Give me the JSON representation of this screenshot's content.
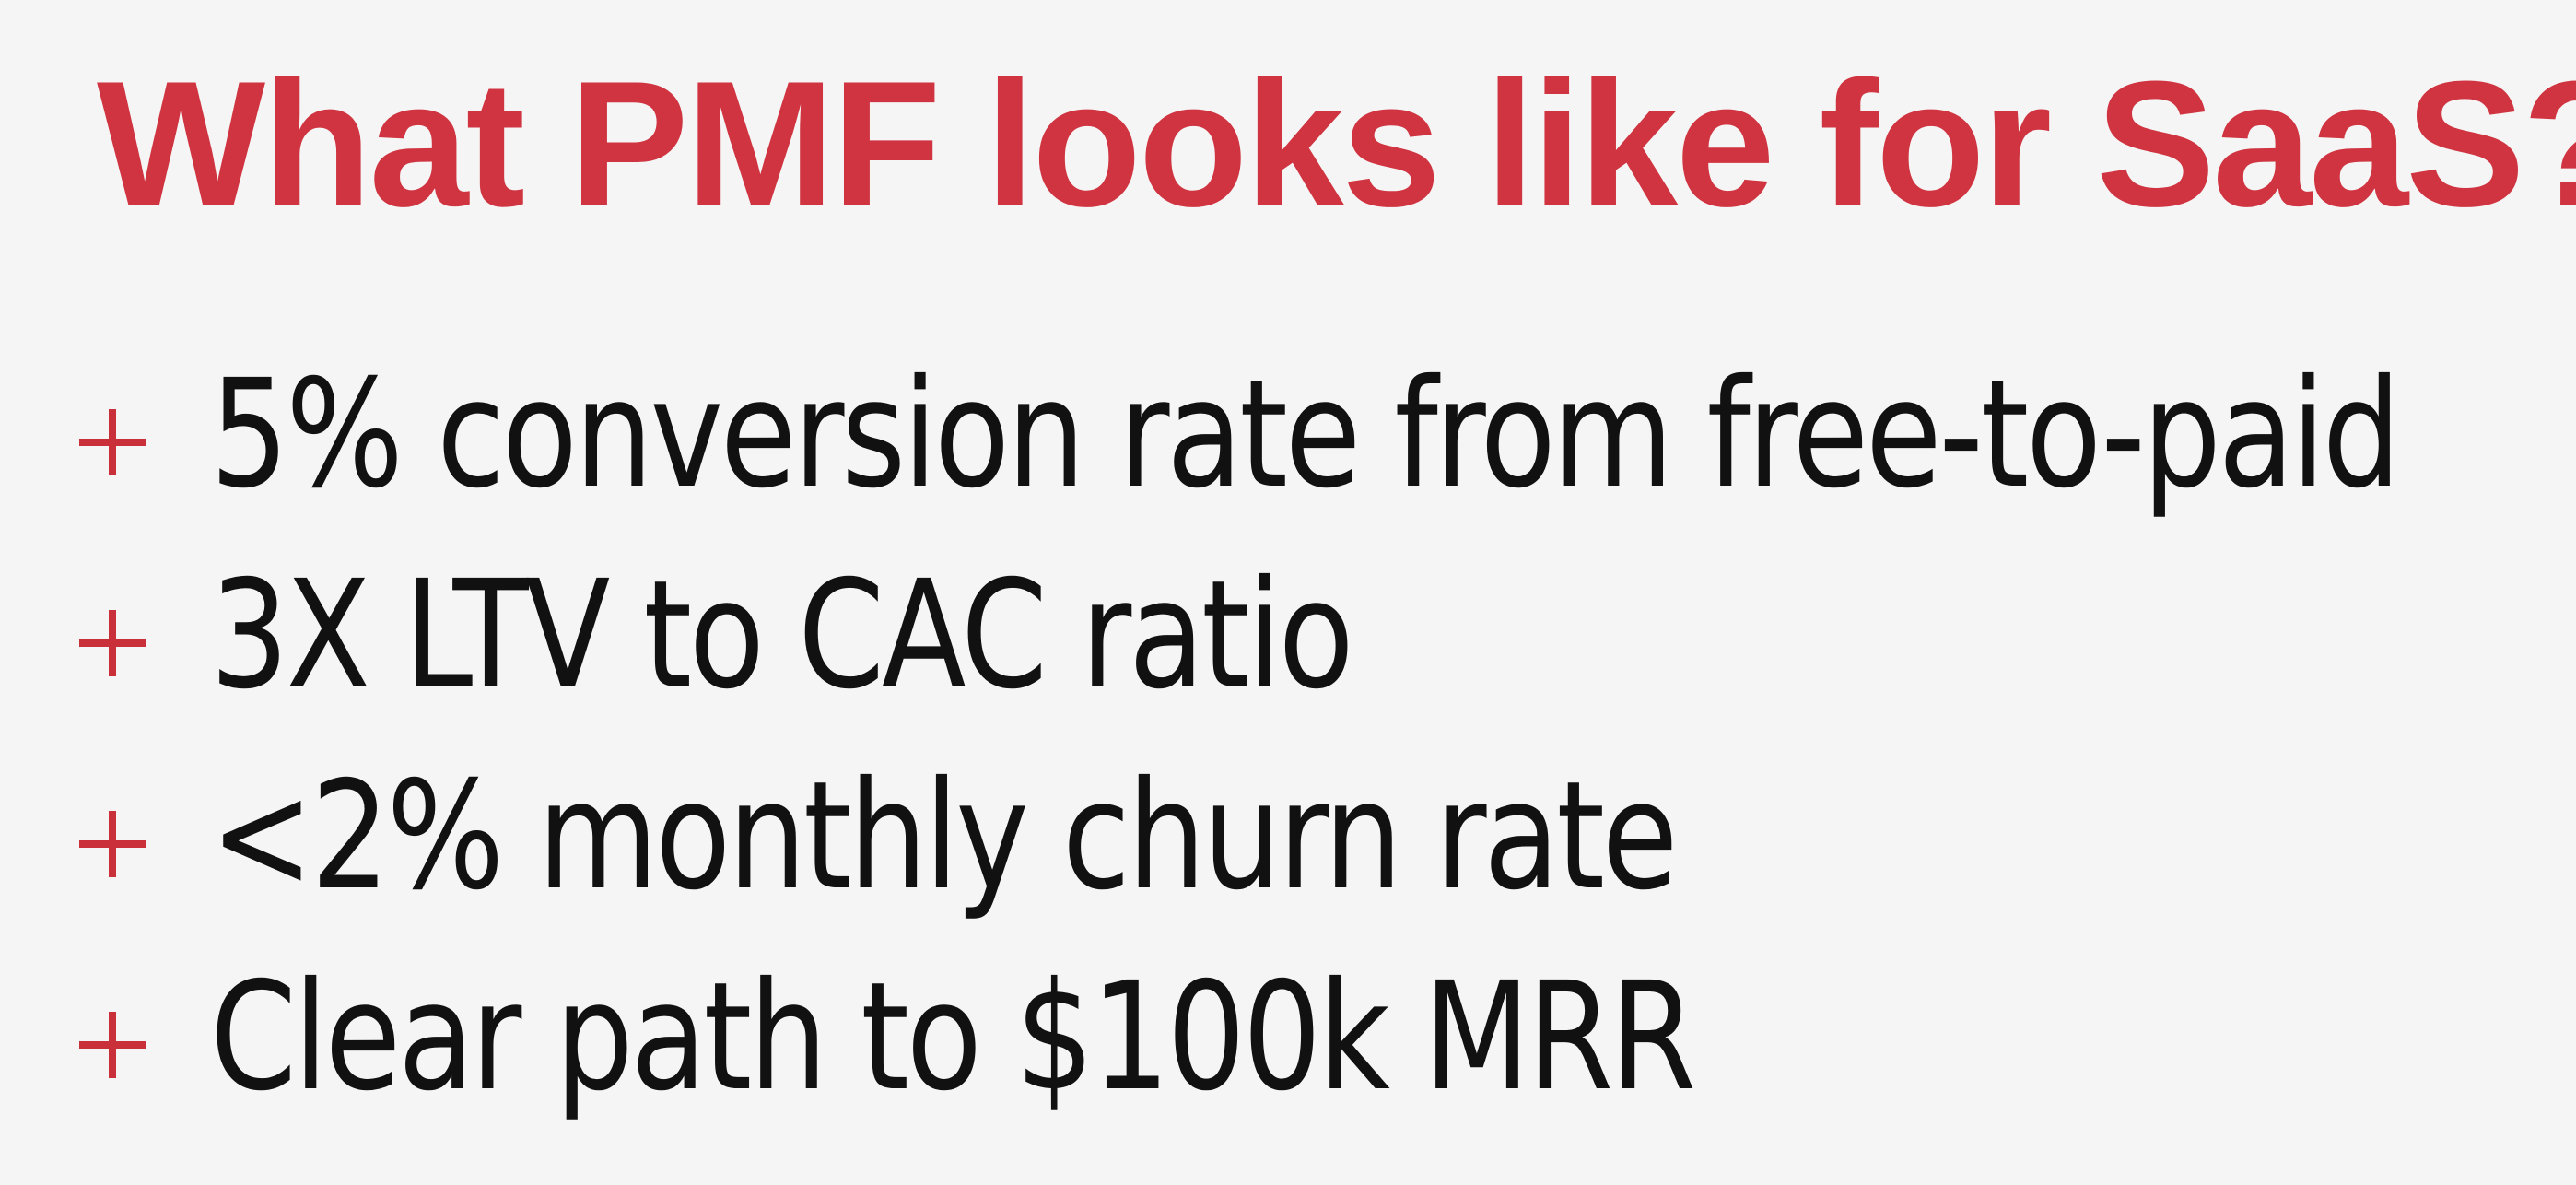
{
  "slide": {
    "title": "What PMF looks like for SaaS?",
    "bullets": [
      {
        "text": "5% conversion rate from free-to-paid",
        "icon": "plus-icon"
      },
      {
        "text": "3X LTV to CAC ratio",
        "icon": "plus-icon"
      },
      {
        "text": "<2% monthly churn rate",
        "icon": "plus-icon"
      },
      {
        "text": "Clear path to $100k MRR",
        "icon": "plus-icon"
      }
    ]
  },
  "colors": {
    "title": "#cf3440",
    "accent": "#c9303a",
    "text": "#111111",
    "background": "#f5f5f5"
  }
}
